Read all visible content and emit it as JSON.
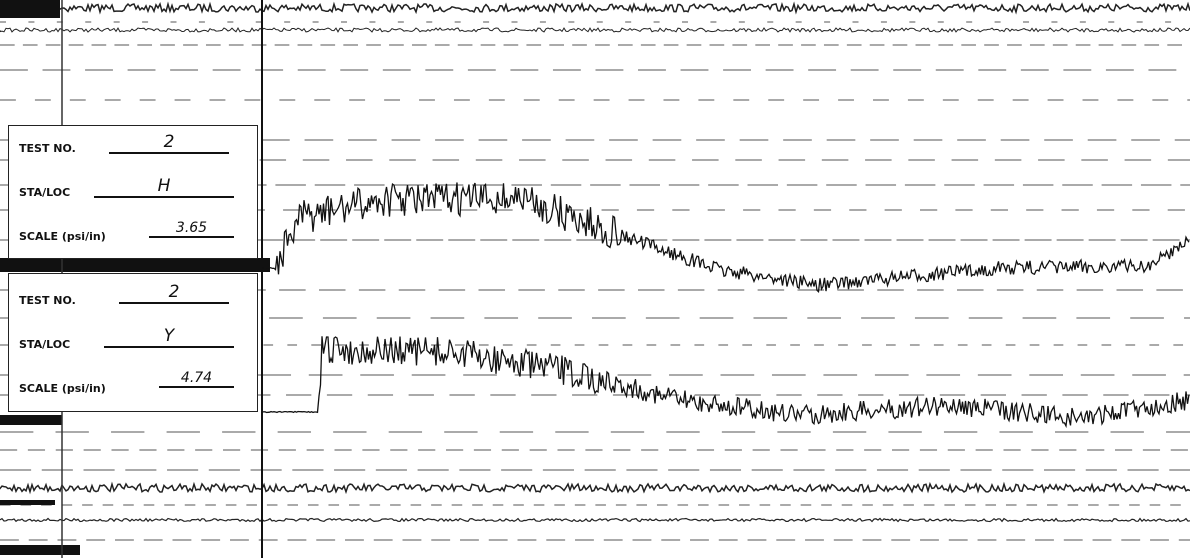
{
  "panels": [
    {
      "test_no_label": "TEST NO.",
      "test_no": "2",
      "sta_loc_label": "STA/LOC",
      "sta_loc": "H",
      "scale_label": "SCALE (psi/in)",
      "scale": "3.65"
    },
    {
      "test_no_label": "TEST NO.",
      "test_no": "2",
      "sta_loc_label": "STA/LOC",
      "sta_loc": "Y",
      "scale_label": "SCALE (psi/in)",
      "scale": "4.74"
    }
  ]
}
